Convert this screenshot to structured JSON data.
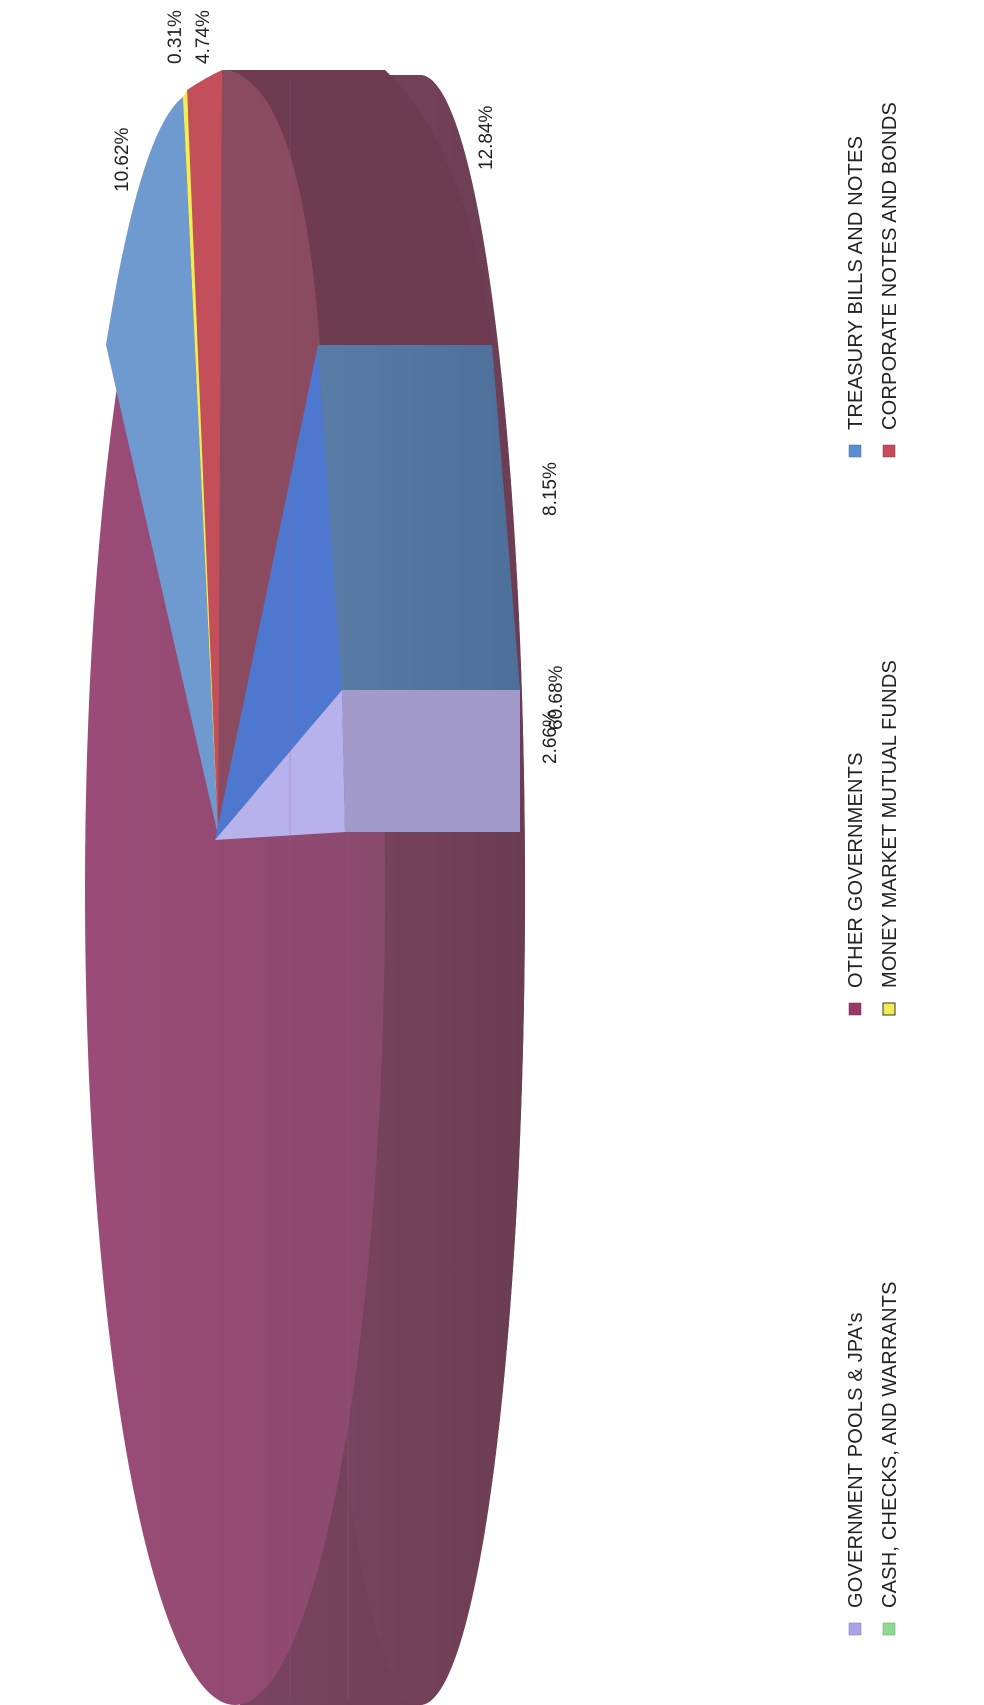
{
  "chart_data": {
    "type": "pie",
    "style": "3d-exploded",
    "orientation": "rotated-90-clockwise",
    "title": "",
    "slices": [
      {
        "label": "OTHER GOVERNMENTS",
        "value": 60.68,
        "display": "60.68%",
        "color": "#9B4A77",
        "side_color": "#6E3B50",
        "exploded": false
      },
      {
        "label": "TREASURY BILLS AND NOTES",
        "value": 10.62,
        "display": "10.62%",
        "color": "#6E9AD0",
        "side_color": "#4D6E99",
        "exploded": false
      },
      {
        "label": "MONEY MARKET MUTUAL FUNDS",
        "value": 0.31,
        "display": "0.31%",
        "color": "#F2EE50",
        "side_color": "#B9B43A",
        "exploded": false
      },
      {
        "label": "CORPORATE NOTES AND BONDS",
        "value": 4.74,
        "display": "4.74%",
        "color": "#C24F59",
        "side_color": "#8E3A44",
        "exploded": false
      },
      {
        "label": "",
        "value": 12.84,
        "display": "12.84%",
        "color": "#8E4A5E",
        "side_color": "#6A3848",
        "exploded": false
      },
      {
        "label": "",
        "value": 8.15,
        "display": "8.15%",
        "color": "#4E78D0",
        "side_color": "#56789E",
        "exploded": true
      },
      {
        "label": "GOVERNMENT POOLS & JPA's",
        "value": 2.66,
        "display": "2.66%",
        "color": "#B7B2EC",
        "side_color": "#A29ACB",
        "exploded": true
      }
    ],
    "legend": {
      "placement": "bottom (rotated)",
      "items": [
        {
          "label": "TREASURY BILLS AND NOTES",
          "color": "#5B8FD0"
        },
        {
          "label": "CORPORATE NOTES AND BONDS",
          "color": "#C94A58"
        },
        {
          "label": "OTHER GOVERNMENTS",
          "color": "#9A3A68"
        },
        {
          "label": "MONEY MARKET MUTUAL FUNDS",
          "color": "#F2EE50"
        },
        {
          "label": "GOVERNMENT POOLS & JPA's",
          "color": "#A9A3E6"
        },
        {
          "label": "CASH, CHECKS, AND WARRANTS",
          "color": "#8FD88F"
        }
      ]
    }
  }
}
